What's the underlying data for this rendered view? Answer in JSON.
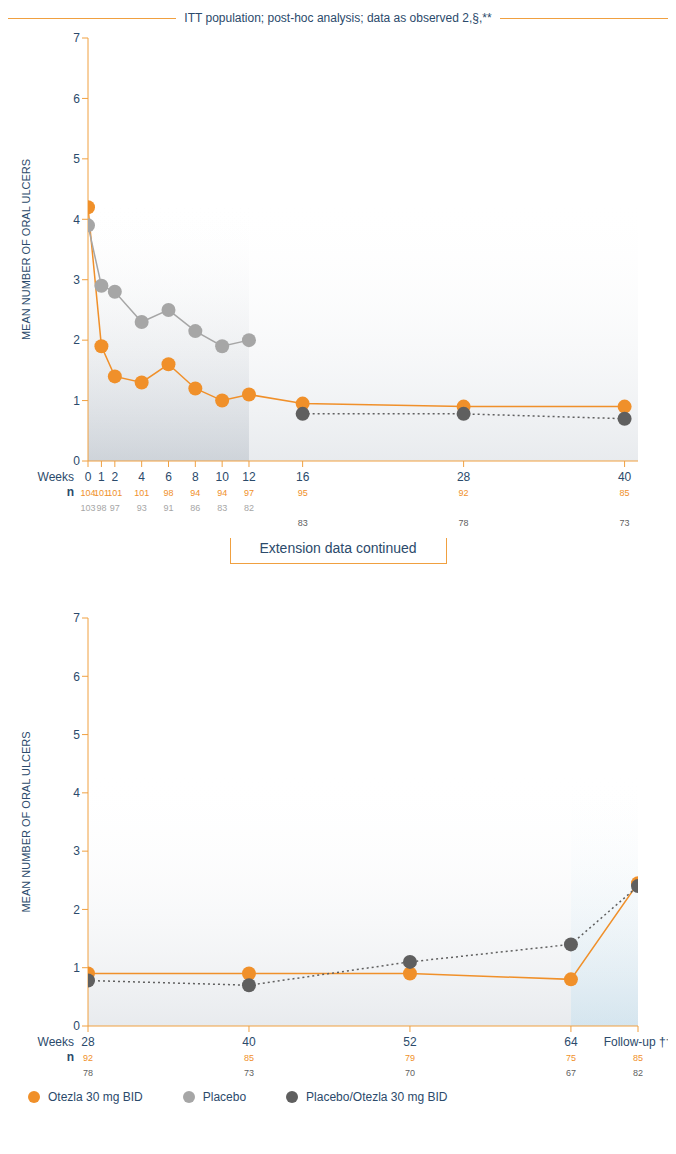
{
  "chart_data": [
    {
      "type": "line",
      "title": "ITT population; post-hoc analysis; data as observed 2,§,**",
      "y_label": "MEAN NUMBER OF ORAL ULCERS",
      "x_label": "Weeks",
      "count_label": "n",
      "xlim": [
        0,
        41
      ],
      "xticks": [
        0,
        1,
        2,
        4,
        6,
        8,
        10,
        12,
        16,
        28,
        40
      ],
      "ylim": [
        0,
        7
      ],
      "yticks": [
        0,
        1,
        2,
        3,
        4,
        5,
        6,
        7
      ],
      "grid": false,
      "legend": "bottom",
      "series": [
        {
          "name": "Otezla 30 mg BID",
          "color": "#f0902a",
          "line_style": "solid",
          "marker": "circle",
          "x": [
            0,
            1,
            2,
            4,
            6,
            8,
            10,
            12,
            16,
            28,
            40
          ],
          "values": [
            4.2,
            1.9,
            1.4,
            1.3,
            1.6,
            1.2,
            1.0,
            1.1,
            0.95,
            0.9,
            0.9
          ],
          "n": [
            104,
            101,
            101,
            101,
            98,
            94,
            94,
            97,
            95,
            92,
            85
          ]
        },
        {
          "name": "Placebo",
          "color": "#a6a6a6",
          "line_style": "solid",
          "marker": "circle",
          "x": [
            0,
            1,
            2,
            4,
            6,
            8,
            10,
            12
          ],
          "values": [
            3.9,
            2.9,
            2.8,
            2.3,
            2.5,
            2.15,
            1.9,
            2.0
          ],
          "n": [
            103,
            98,
            97,
            93,
            91,
            86,
            83,
            82
          ]
        },
        {
          "name": "Placebo/Otezla 30 mg BID",
          "color": "#5f5f5f",
          "line_style": "dotted",
          "marker": "circle",
          "x": [
            16,
            28,
            40
          ],
          "values": [
            0.78,
            0.78,
            0.7
          ],
          "n": [
            83,
            78,
            73
          ]
        }
      ]
    },
    {
      "type": "line",
      "title": "Extension data continued",
      "y_label": "MEAN NUMBER OF ORAL ULCERS",
      "x_label": "Weeks",
      "count_label": "n",
      "xlim": [
        28,
        69
      ],
      "xticks": [
        28,
        40,
        52,
        64,
        {
          "value": 69,
          "label": "Follow-up ††"
        }
      ],
      "ylim": [
        0,
        7
      ],
      "yticks": [
        0,
        1,
        2,
        3,
        4,
        5,
        6,
        7
      ],
      "grid": false,
      "series": [
        {
          "name": "Otezla 30 mg BID",
          "color": "#f0902a",
          "line_style": "solid",
          "marker": "circle",
          "x": [
            28,
            40,
            52,
            64,
            69
          ],
          "values": [
            0.9,
            0.9,
            0.9,
            0.8,
            2.45
          ],
          "n": [
            92,
            85,
            79,
            75,
            85
          ]
        },
        {
          "name": "Placebo/Otezla 30 mg BID",
          "color": "#5f5f5f",
          "line_style": "dotted",
          "marker": "circle",
          "x": [
            28,
            40,
            52,
            64,
            69
          ],
          "values": [
            0.78,
            0.7,
            1.1,
            1.4,
            2.4
          ],
          "n": [
            78,
            73,
            70,
            67,
            82
          ]
        }
      ]
    }
  ]
}
